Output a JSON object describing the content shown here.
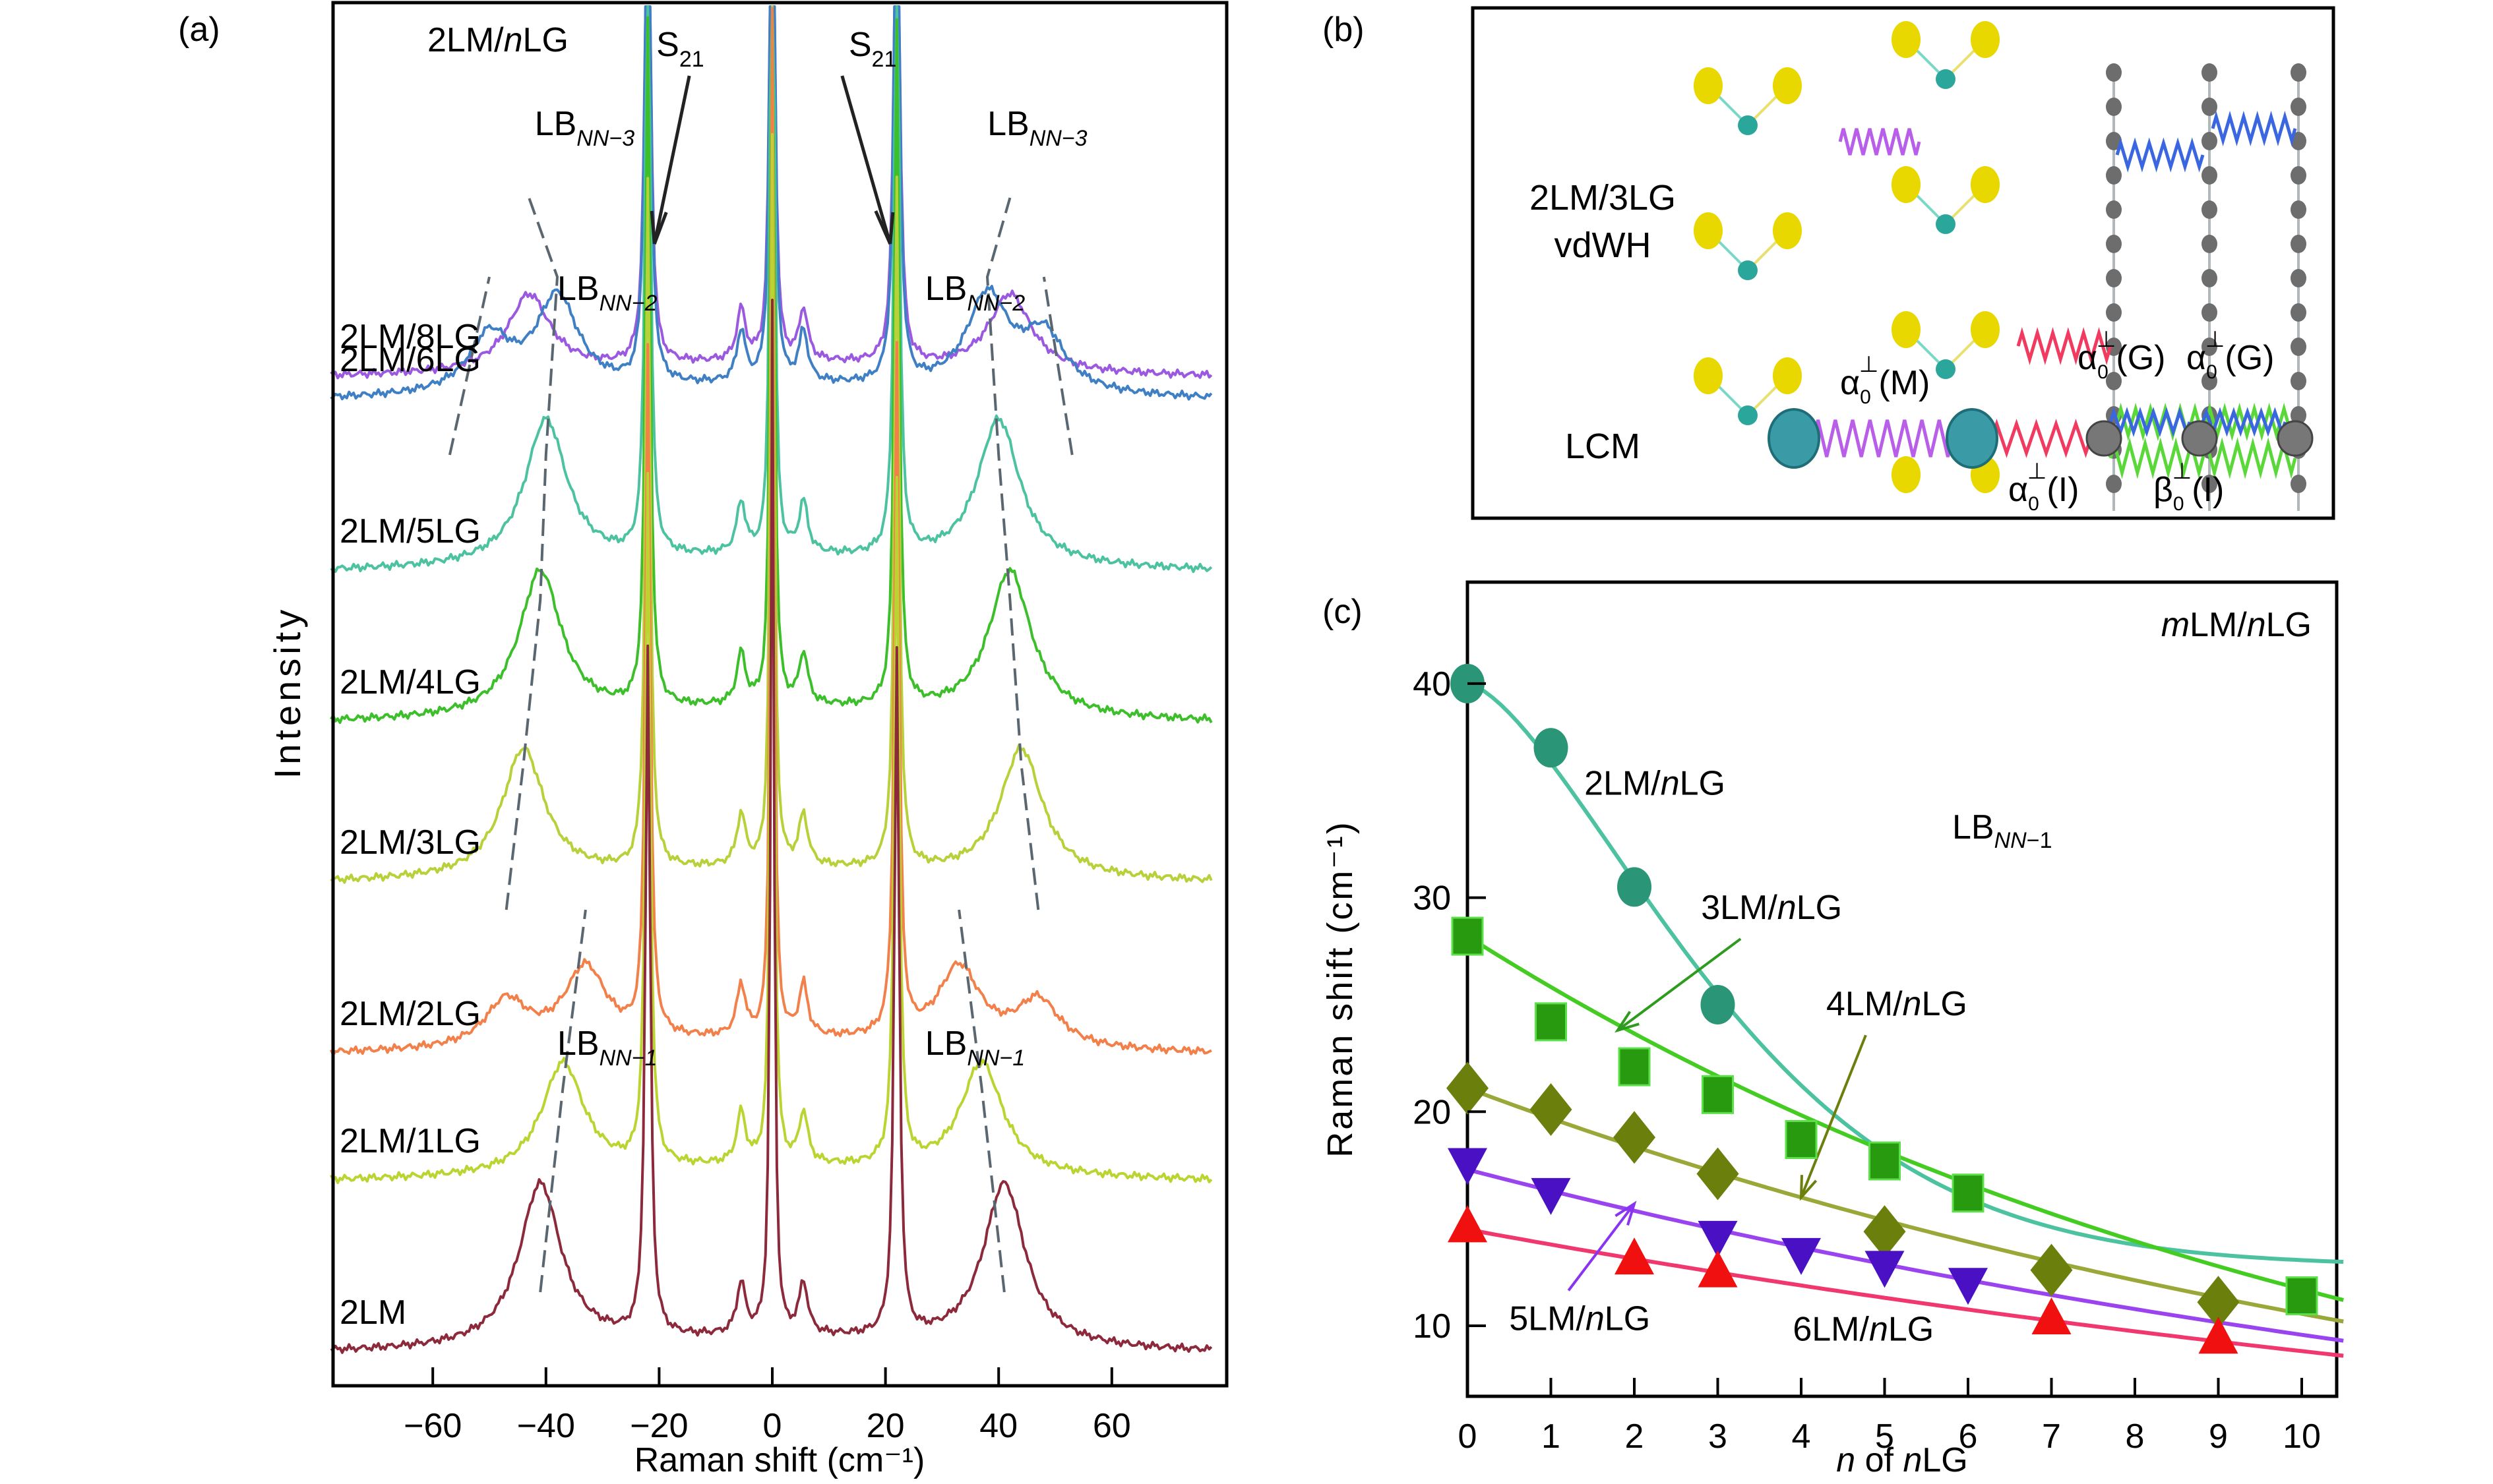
{
  "panel_labels": {
    "a": "(a)",
    "b": "(b)",
    "c": "(c)"
  },
  "chart_data": [
    {
      "panel": "a",
      "type": "line",
      "title": "2LM/nLG",
      "title_parts": [
        "2LM/",
        "n",
        "LG"
      ],
      "xlabel": "Raman shift (cm⁻¹)",
      "ylabel": "Intensity",
      "xlim": [
        -78,
        78
      ],
      "xticks": [
        -60,
        -40,
        -20,
        0,
        20,
        40,
        60
      ],
      "xtick_labels": [
        "−60",
        "−40",
        "−20",
        "0",
        "20",
        "40",
        "60"
      ],
      "grid": false,
      "series": [
        {
          "name": "2LM/8LG",
          "color": "#9b59e0",
          "offset": 7,
          "lb_left": [
            -43
          ],
          "lb_right": [
            42
          ],
          "amp": 0.45
        },
        {
          "name": "2LM/6LG",
          "color": "#3f7fc4",
          "offset": 6,
          "lb_left": [
            -38,
            -50
          ],
          "lb_right": [
            38,
            48
          ],
          "amp": 0.55
        },
        {
          "name": "2LM/5LG",
          "color": "#4cc2a0",
          "offset": 5,
          "lb_left": [
            -40
          ],
          "lb_right": [
            40
          ],
          "amp": 0.85
        },
        {
          "name": "2LM/4LG",
          "color": "#3cbf2a",
          "offset": 4,
          "lb_left": [
            -41
          ],
          "lb_right": [
            42
          ],
          "amp": 0.85
        },
        {
          "name": "2LM/3LG",
          "color": "#b7d13a",
          "offset": 3,
          "lb_left": [
            -44
          ],
          "lb_right": [
            44
          ],
          "amp": 0.75
        },
        {
          "name": "2LM/2LG",
          "color": "#f2804a",
          "offset": 2,
          "lb_left": [
            -33,
            -47
          ],
          "lb_right": [
            33,
            47
          ],
          "amp": 0.45
        },
        {
          "name": "2LM/1LG",
          "color": "#bcd432",
          "offset": 1,
          "lb_left": [
            -37
          ],
          "lb_right": [
            37
          ],
          "amp": 0.65
        },
        {
          "name": "2LM",
          "color": "#8c2a3c",
          "offset": 0,
          "lb_left": [
            -41
          ],
          "lb_right": [
            41
          ],
          "amp": 0.95
        }
      ],
      "s21_peaks": [
        -22,
        22
      ],
      "annotations": [
        {
          "text": "S",
          "sub": "21",
          "x": -17,
          "arrow_to": -22
        },
        {
          "text": "S",
          "sub": "21",
          "x": 17,
          "arrow_to": 22
        },
        {
          "text": "LB",
          "sub": "NN−3",
          "x": -35,
          "level": "top"
        },
        {
          "text": "LB",
          "sub": "NN−3",
          "x": 45,
          "level": "top"
        },
        {
          "text": "LB",
          "sub": "NN−2",
          "x": -31,
          "level": "mid"
        },
        {
          "text": "LB",
          "sub": "NN−2",
          "x": 34,
          "level": "mid"
        },
        {
          "text": "LB",
          "sub": "NN−1",
          "x": -31,
          "level": "low"
        },
        {
          "text": "LB",
          "sub": "NN−1",
          "x": 34,
          "level": "low"
        }
      ],
      "dashed_guides": [
        {
          "points": [
            [
              -41,
              0
            ],
            [
              -37,
              1
            ],
            [
              -33,
              2
            ]
          ]
        },
        {
          "points": [
            [
              -47,
              2
            ],
            [
              -44,
              3
            ],
            [
              -41,
              4
            ],
            [
              -40,
              5
            ],
            [
              -38,
              6
            ],
            [
              -43,
              7
            ]
          ]
        },
        {
          "points": [
            [
              -57,
              5
            ],
            [
              -50,
              6
            ]
          ]
        },
        {
          "points": [
            [
              41,
              0
            ],
            [
              37,
              1
            ],
            [
              33,
              2
            ]
          ]
        },
        {
          "points": [
            [
              47,
              2
            ],
            [
              44,
              3
            ],
            [
              42,
              4
            ],
            [
              40,
              5
            ],
            [
              38,
              6
            ],
            [
              42,
              7
            ]
          ]
        },
        {
          "points": [
            [
              53,
              5
            ],
            [
              48,
              6
            ]
          ]
        }
      ]
    },
    {
      "panel": "c",
      "type": "scatter",
      "title": "mLM/nLG",
      "annotation": "LB_NN−1",
      "xlabel": "n of nLG",
      "ylabel": "Raman shift (cm⁻¹)",
      "xlim": [
        0,
        10.5
      ],
      "ylim": [
        7,
        45
      ],
      "xticks": [
        0,
        1,
        2,
        3,
        4,
        5,
        6,
        7,
        8,
        9,
        10
      ],
      "yticks": [
        10,
        20,
        30,
        40
      ],
      "grid": false,
      "legend": "inline labels",
      "series": [
        {
          "name": "2LM/nLG",
          "marker": "circle",
          "color": "#2a9677",
          "line_color": "#4cc2a0",
          "x": [
            0,
            1,
            2,
            3
          ],
          "y": [
            40.0,
            37.0,
            30.5,
            25.0
          ],
          "fit_start": 40.0,
          "fit_end_at_10_5": 12.8
        },
        {
          "name": "3LM/nLG",
          "marker": "square",
          "color": "#279a10",
          "line_color": "#44cc22",
          "x": [
            0,
            1,
            2,
            3,
            4,
            5,
            6,
            10
          ],
          "y": [
            28.2,
            24.2,
            22.1,
            20.8,
            18.7,
            17.7,
            16.2,
            11.4
          ],
          "fit_start": 28.2,
          "fit_end_at_10_5": 11.2
        },
        {
          "name": "4LM/nLG",
          "marker": "diamond",
          "color": "#6b7f0c",
          "line_color": "#9aa83a",
          "x": [
            0,
            1,
            2,
            3,
            5,
            7,
            9
          ],
          "y": [
            21.1,
            20.1,
            18.8,
            17.1,
            14.4,
            12.6,
            11.1
          ],
          "fit_start": 21.1,
          "fit_end_at_10_5": 10.2
        },
        {
          "name": "5LM/nLG",
          "marker": "triangle-down",
          "color": "#4a10c4",
          "line_color": "#9a44f0",
          "x": [
            0,
            1,
            3,
            4,
            5,
            6
          ],
          "y": [
            17.5,
            16.1,
            14.1,
            13.3,
            12.7,
            11.9
          ],
          "fit_start": 17.3,
          "fit_end_at_10_5": 9.3
        },
        {
          "name": "6LM/nLG",
          "marker": "triangle-up",
          "color": "#f01010",
          "line_color": "#f0386e",
          "x": [
            0,
            2,
            3,
            7,
            9
          ],
          "y": [
            14.7,
            13.2,
            12.6,
            10.4,
            9.5
          ],
          "fit_start": 14.5,
          "fit_end_at_10_5": 8.6
        }
      ],
      "label_points": [
        {
          "series": "2LM/nLG",
          "at": [
            1.4,
            34.8
          ]
        },
        {
          "series": "3LM/nLG",
          "at": [
            2.8,
            29.0
          ],
          "arrow_to": [
            1.8,
            23.8
          ]
        },
        {
          "series": "4LM/nLG",
          "at": [
            4.3,
            24.5
          ],
          "arrow_to": [
            4.0,
            16.0
          ]
        },
        {
          "series": "5LM/nLG",
          "at": [
            0.5,
            9.8
          ],
          "arrow_to": [
            2.0,
            15.7
          ]
        },
        {
          "series": "6LM/nLG",
          "at": [
            3.9,
            9.3
          ]
        }
      ]
    }
  ],
  "panel_b": {
    "rows": [
      "2LM/3LG\nvdWH",
      "LCM"
    ],
    "row_label_top_1": "2LM/3LG",
    "row_label_top_2": "vdWH",
    "row_label_bottom": "LCM",
    "springs": [
      {
        "label": "α₀⊥(M)",
        "color": "#b85ee8"
      },
      {
        "label": "α₀⊥(I)",
        "color": "#f03a60"
      },
      {
        "label": "α₀⊥(G)",
        "color": "#3a66e0"
      },
      {
        "label": "α₀⊥(G)",
        "color": "#3a66e0"
      },
      {
        "label": "β₀⊥(I)",
        "color": "#5ad83a"
      }
    ],
    "label_alpha_M": "α",
    "label_alpha_M_tail": "(M)",
    "label_alpha_I_tail": "(I)",
    "label_alpha_G_tail": "(G)",
    "label_beta_I": "β",
    "label_beta_I_tail": "(I)",
    "sub0": "0",
    "perp": "⊥",
    "atom_colors": {
      "metal": "#2aa79a",
      "chalcogen": "#e8d800",
      "carbon": "#6d6d6d",
      "lcm_metal": "#3a9aa6"
    }
  }
}
